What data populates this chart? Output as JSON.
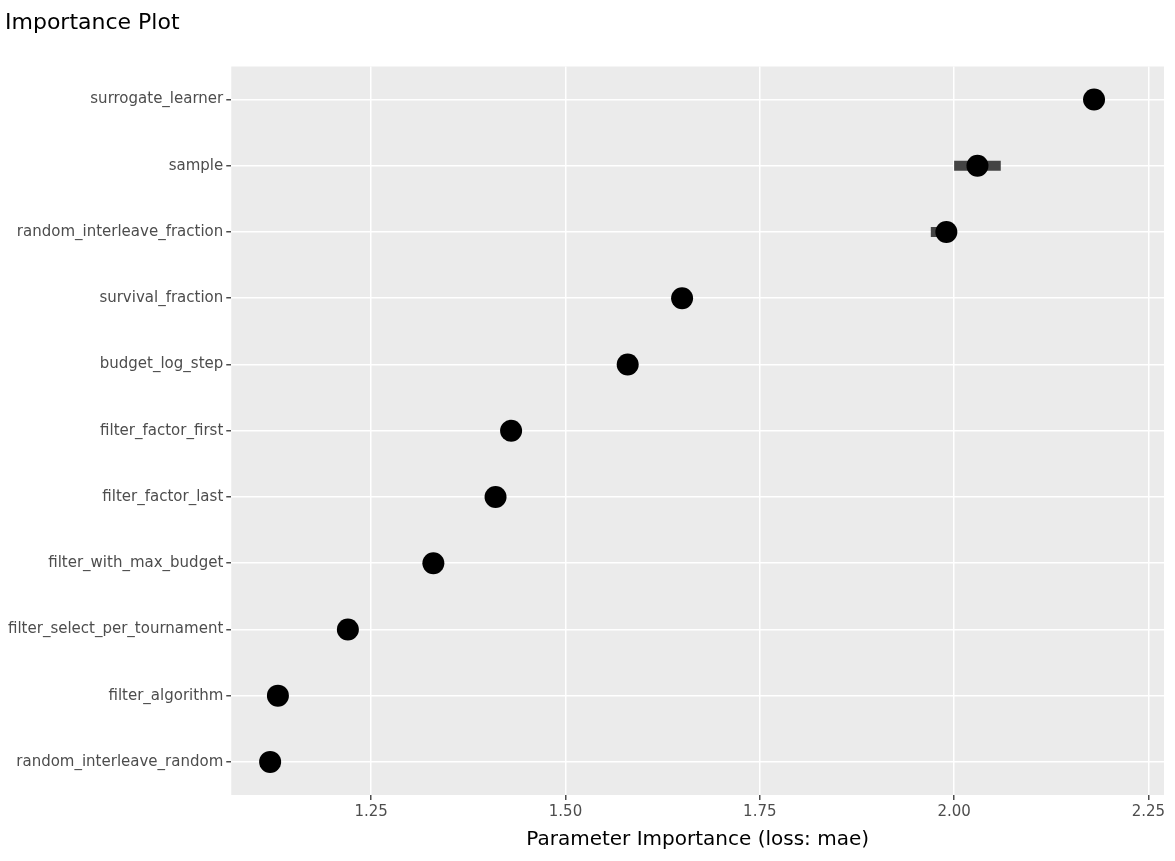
{
  "chart_data": {
    "type": "scatter",
    "title": "Importance Plot",
    "xlabel": "Parameter Importance (loss: mae)",
    "orientation": "horizontal",
    "categories": [
      "surrogate_learner",
      "sample",
      "random_interleave_fraction",
      "survival_fraction",
      "budget_log_step",
      "filter_factor_first",
      "filter_factor_last",
      "filter_with_max_budget",
      "filter_select_per_tournament",
      "filter_algorithm",
      "random_interleave_random"
    ],
    "values": [
      2.18,
      2.03,
      1.99,
      1.65,
      1.58,
      1.43,
      1.41,
      1.33,
      1.22,
      1.13,
      1.12
    ],
    "errors": [
      null,
      [
        2.0,
        2.06
      ],
      [
        1.97,
        2.0
      ],
      null,
      null,
      null,
      null,
      null,
      null,
      null,
      null
    ],
    "color": "#000000",
    "xlim": [
      1.07,
      2.27
    ],
    "xticks": [
      {
        "value": 1.25,
        "label": "1.25"
      },
      {
        "value": 1.5,
        "label": "1.50"
      },
      {
        "value": 1.75,
        "label": "1.75"
      },
      {
        "value": 2,
        "label": "2.00"
      },
      {
        "value": 2.25,
        "label": "2.25"
      }
    ],
    "grid": true,
    "marker": "circle",
    "legend": false
  }
}
